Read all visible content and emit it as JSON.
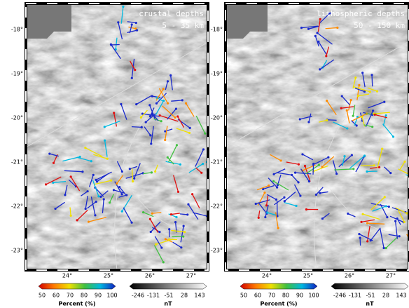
{
  "panels": [
    {
      "title_line1": "crustal depths",
      "title_line2": "5 - 35 km",
      "lat_labels": [
        "-18°",
        "-19°",
        "-20°",
        "-21°",
        "-22°",
        "-23°"
      ],
      "lon_labels": [
        "24°",
        "25°",
        "26°",
        "27°"
      ],
      "percent_ticks": [
        "50",
        "60",
        "70",
        "80",
        "90",
        "100"
      ],
      "percent_title": "Percent (%)",
      "nt_ticks": [
        "-246",
        "-131",
        "-51",
        "28",
        "143"
      ],
      "nt_title": "nT"
    },
    {
      "title_line1": "lithospheric depths",
      "title_line2": "50 - 150 km",
      "lat_labels": [
        "-18°",
        "-19°",
        "-20°",
        "-21°",
        "-22°",
        "-23°"
      ],
      "lon_labels": [
        "24°",
        "25°",
        "26°",
        "27°"
      ],
      "percent_ticks": [
        "50",
        "60",
        "70",
        "80",
        "90",
        "100"
      ],
      "percent_title": "Percent (%)",
      "nt_ticks": [
        "-246",
        "-131",
        "-51",
        "28",
        "143"
      ],
      "nt_title": "nT"
    }
  ]
}
